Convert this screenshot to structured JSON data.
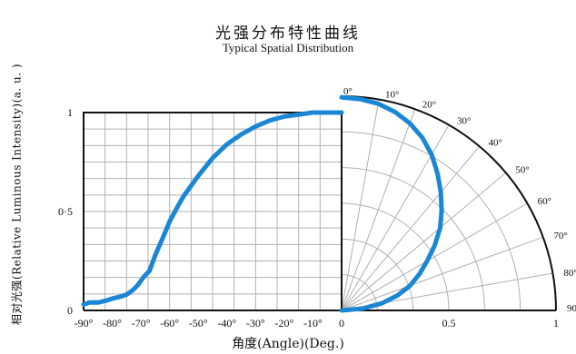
{
  "chart_data": {
    "type": "line",
    "title": "光强分布特性曲线",
    "subtitle": "Typical Spatial Distribution",
    "ylabel": "相对光强(Relative Luminous Intensity)(a. u. )",
    "xlabel": "角度(Angle)(Deg.)",
    "ylim": [
      0,
      1
    ],
    "xlim": [
      -90,
      0
    ],
    "grid": true,
    "yticks": [
      "0",
      "0·5",
      "1"
    ],
    "xticks": [
      "-90°",
      "-80°",
      "-70°",
      "-60°",
      "-50°",
      "-40°",
      "-30°",
      "-20°",
      "-10°",
      "0"
    ],
    "polar_angle_labels": [
      "0°",
      "10°",
      "20°",
      "30°",
      "40°",
      "50°",
      "60°",
      "70°",
      "80°",
      "90°"
    ],
    "polar_radius_labels": [
      "0.5",
      "1"
    ],
    "series": [
      {
        "x": [
          -90,
          -88,
          -85,
          -82,
          -80,
          -77,
          -75,
          -73,
          -71,
          -69,
          -67,
          -65,
          -62,
          -60,
          -57,
          -55,
          -50,
          -45,
          -40,
          -35,
          -30,
          -25,
          -20,
          -15,
          -10,
          -5,
          0
        ],
        "values": [
          0.03,
          0.04,
          0.04,
          0.05,
          0.06,
          0.07,
          0.08,
          0.1,
          0.13,
          0.17,
          0.2,
          0.28,
          0.38,
          0.45,
          0.53,
          0.58,
          0.68,
          0.77,
          0.84,
          0.89,
          0.93,
          0.96,
          0.98,
          0.99,
          1.0,
          1.0,
          1.0
        ]
      },
      {
        "angle": [
          0,
          5,
          10,
          15,
          20,
          25,
          30,
          35,
          40,
          45,
          50,
          55,
          60,
          65,
          70,
          75,
          80,
          85,
          90
        ],
        "values": [
          0.995,
          0.99,
          0.98,
          0.96,
          0.93,
          0.89,
          0.84,
          0.78,
          0.72,
          0.66,
          0.6,
          0.53,
          0.46,
          0.4,
          0.34,
          0.27,
          0.19,
          0.1,
          0.0
        ]
      }
    ],
    "colors": {
      "curve": "#1a86d4",
      "grid": "#b0b0b0",
      "axis": "#111111"
    }
  }
}
